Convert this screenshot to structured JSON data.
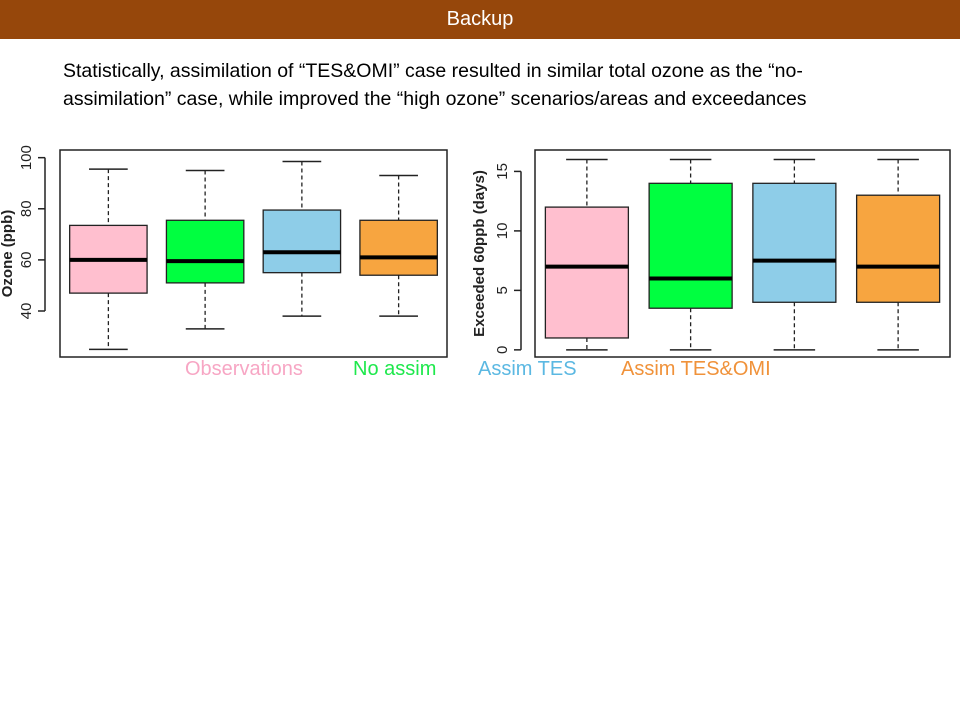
{
  "header": {
    "title": "Backup"
  },
  "description": "Statistically, assimilation of “TES&OMI” case resulted in similar total ozone as the “no-assimilation” case, while improved the “high ozone” scenarios/areas and exceedances",
  "legend": [
    {
      "label": "Observations",
      "color": "#f7a6c4"
    },
    {
      "label": "No assim",
      "color": "#1ee84c"
    },
    {
      "label": "Assim TES",
      "color": "#5bb8e2"
    },
    {
      "label": "Assim TES&OMI",
      "color": "#f0923a"
    }
  ],
  "chart_data": [
    {
      "type": "boxplot",
      "ylabel": "Ozone (ppb)",
      "xlabel": "",
      "ylim": [
        22,
        103
      ],
      "yticks": [
        40,
        60,
        80,
        100
      ],
      "grid": false,
      "series": [
        {
          "name": "Observations",
          "whisker_low": 25,
          "q1": 47,
          "median": 60,
          "q3": 73.5,
          "whisker_high": 95.5,
          "color": "#ffbfcf"
        },
        {
          "name": "No assim",
          "whisker_low": 33,
          "q1": 51,
          "median": 59.5,
          "q3": 75.5,
          "whisker_high": 95,
          "color": "#00ff40"
        },
        {
          "name": "Assim TES",
          "whisker_low": 38,
          "q1": 55,
          "median": 63,
          "q3": 79.5,
          "whisker_high": 98.5,
          "color": "#8ecde8"
        },
        {
          "name": "Assim TES&OMI",
          "whisker_low": 38,
          "q1": 54,
          "median": 61,
          "q3": 75.5,
          "whisker_high": 93,
          "color": "#f7a540"
        }
      ]
    },
    {
      "type": "boxplot",
      "ylabel": "Exceeded 60ppb (days)",
      "xlabel": "",
      "ylim": [
        -0.6,
        16.8
      ],
      "yticks": [
        0,
        5,
        10,
        15
      ],
      "grid": false,
      "series": [
        {
          "name": "Observations",
          "whisker_low": 0,
          "q1": 1,
          "median": 7,
          "q3": 12,
          "whisker_high": 16,
          "color": "#ffbfcf"
        },
        {
          "name": "No assim",
          "whisker_low": 0,
          "q1": 3.5,
          "median": 6,
          "q3": 14,
          "whisker_high": 16,
          "color": "#00ff40"
        },
        {
          "name": "Assim TES",
          "whisker_low": 0,
          "q1": 4,
          "median": 7.5,
          "q3": 14,
          "whisker_high": 16,
          "color": "#8ecde8"
        },
        {
          "name": "Assim TES&OMI",
          "whisker_low": 0,
          "q1": 4,
          "median": 7,
          "q3": 13,
          "whisker_high": 16,
          "color": "#f7a540"
        }
      ]
    }
  ]
}
